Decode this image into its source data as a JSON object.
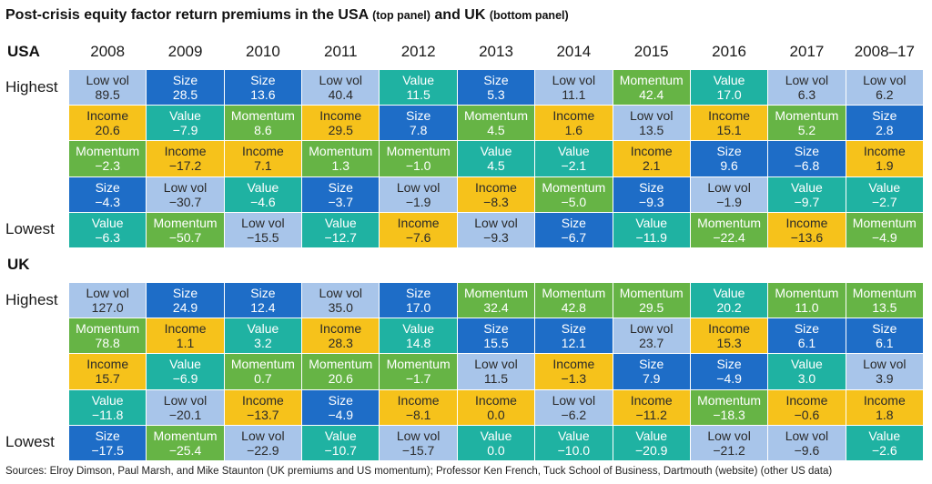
{
  "chart_data": {
    "type": "table",
    "title": {
      "main": "Post-crisis equity factor return premiums in the USA",
      "top_note": "(top panel)",
      "join": "and UK",
      "bottom_note": "(bottom panel)"
    },
    "periods": [
      "2008",
      "2009",
      "2010",
      "2011",
      "2012",
      "2013",
      "2014",
      "2015",
      "2016",
      "2017",
      "2008–17"
    ],
    "rank_labels": {
      "top": "Highest",
      "bottom": "Lowest"
    },
    "factor_colors": {
      "Low vol": "#a8c5ea",
      "Size": "#1e6dc7",
      "Income": "#f6c21b",
      "Momentum": "#66b445",
      "Value": "#1fb2a2"
    },
    "factor_text_colors": {
      "Low vol": "#2a2a2a",
      "Size": "#ffffff",
      "Income": "#2a2a2a",
      "Momentum": "#ffffff",
      "Value": "#ffffff"
    },
    "panels": [
      {
        "label": "USA",
        "ranked_by_period": [
          [
            {
              "factor": "Low vol",
              "value": 89.5
            },
            {
              "factor": "Income",
              "value": 20.6
            },
            {
              "factor": "Momentum",
              "value": -2.3
            },
            {
              "factor": "Size",
              "value": -4.3
            },
            {
              "factor": "Value",
              "value": -6.3
            }
          ],
          [
            {
              "factor": "Size",
              "value": 28.5
            },
            {
              "factor": "Value",
              "value": -7.9
            },
            {
              "factor": "Income",
              "value": -17.2
            },
            {
              "factor": "Low vol",
              "value": -30.7
            },
            {
              "factor": "Momentum",
              "value": -50.7
            }
          ],
          [
            {
              "factor": "Size",
              "value": 13.6
            },
            {
              "factor": "Momentum",
              "value": 8.6
            },
            {
              "factor": "Income",
              "value": 7.1
            },
            {
              "factor": "Value",
              "value": -4.6
            },
            {
              "factor": "Low vol",
              "value": -15.5
            }
          ],
          [
            {
              "factor": "Low vol",
              "value": 40.4
            },
            {
              "factor": "Income",
              "value": 29.5
            },
            {
              "factor": "Momentum",
              "value": 1.3
            },
            {
              "factor": "Size",
              "value": -3.7
            },
            {
              "factor": "Value",
              "value": -12.7
            }
          ],
          [
            {
              "factor": "Value",
              "value": 11.5
            },
            {
              "factor": "Size",
              "value": 7.8
            },
            {
              "factor": "Momentum",
              "value": -1.0
            },
            {
              "factor": "Low vol",
              "value": -1.9
            },
            {
              "factor": "Income",
              "value": -7.6
            }
          ],
          [
            {
              "factor": "Size",
              "value": 5.3
            },
            {
              "factor": "Momentum",
              "value": 4.5
            },
            {
              "factor": "Value",
              "value": 4.5
            },
            {
              "factor": "Income",
              "value": -8.3
            },
            {
              "factor": "Low vol",
              "value": -9.3
            }
          ],
          [
            {
              "factor": "Low vol",
              "value": 11.1
            },
            {
              "factor": "Income",
              "value": 1.6
            },
            {
              "factor": "Value",
              "value": -2.1
            },
            {
              "factor": "Momentum",
              "value": -5.0
            },
            {
              "factor": "Size",
              "value": -6.7
            }
          ],
          [
            {
              "factor": "Momentum",
              "value": 42.4
            },
            {
              "factor": "Low vol",
              "value": 13.5
            },
            {
              "factor": "Income",
              "value": 2.1
            },
            {
              "factor": "Size",
              "value": -9.3
            },
            {
              "factor": "Value",
              "value": -11.9
            }
          ],
          [
            {
              "factor": "Value",
              "value": 17.0
            },
            {
              "factor": "Income",
              "value": 15.1
            },
            {
              "factor": "Size",
              "value": 9.6
            },
            {
              "factor": "Low vol",
              "value": -1.9
            },
            {
              "factor": "Momentum",
              "value": -22.4
            }
          ],
          [
            {
              "factor": "Low vol",
              "value": 6.3
            },
            {
              "factor": "Momentum",
              "value": 5.2
            },
            {
              "factor": "Size",
              "value": -6.8
            },
            {
              "factor": "Value",
              "value": -9.7
            },
            {
              "factor": "Income",
              "value": -13.6
            }
          ],
          [
            {
              "factor": "Low vol",
              "value": 6.2
            },
            {
              "factor": "Size",
              "value": 2.8
            },
            {
              "factor": "Income",
              "value": 1.9
            },
            {
              "factor": "Value",
              "value": -2.7
            },
            {
              "factor": "Momentum",
              "value": -4.9
            }
          ]
        ]
      },
      {
        "label": "UK",
        "ranked_by_period": [
          [
            {
              "factor": "Low vol",
              "value": 127.0
            },
            {
              "factor": "Momentum",
              "value": 78.8
            },
            {
              "factor": "Income",
              "value": 15.7
            },
            {
              "factor": "Value",
              "value": -11.8
            },
            {
              "factor": "Size",
              "value": -17.5
            }
          ],
          [
            {
              "factor": "Size",
              "value": 24.9
            },
            {
              "factor": "Income",
              "value": 1.1
            },
            {
              "factor": "Value",
              "value": -6.9
            },
            {
              "factor": "Low vol",
              "value": -20.1
            },
            {
              "factor": "Momentum",
              "value": -25.4
            }
          ],
          [
            {
              "factor": "Size",
              "value": 12.4
            },
            {
              "factor": "Value",
              "value": 3.2
            },
            {
              "factor": "Momentum",
              "value": 0.7
            },
            {
              "factor": "Income",
              "value": -13.7
            },
            {
              "factor": "Low vol",
              "value": -22.9
            }
          ],
          [
            {
              "factor": "Low vol",
              "value": 35.0
            },
            {
              "factor": "Income",
              "value": 28.3
            },
            {
              "factor": "Momentum",
              "value": 20.6
            },
            {
              "factor": "Size",
              "value": -4.9
            },
            {
              "factor": "Value",
              "value": -10.7
            }
          ],
          [
            {
              "factor": "Size",
              "value": 17.0
            },
            {
              "factor": "Value",
              "value": 14.8
            },
            {
              "factor": "Momentum",
              "value": -1.7
            },
            {
              "factor": "Income",
              "value": -8.1
            },
            {
              "factor": "Low vol",
              "value": -15.7
            }
          ],
          [
            {
              "factor": "Momentum",
              "value": 32.4
            },
            {
              "factor": "Size",
              "value": 15.5
            },
            {
              "factor": "Low vol",
              "value": 11.5
            },
            {
              "factor": "Income",
              "value": 0.0
            },
            {
              "factor": "Value",
              "value": 0.0
            }
          ],
          [
            {
              "factor": "Momentum",
              "value": 42.8
            },
            {
              "factor": "Size",
              "value": 12.1
            },
            {
              "factor": "Income",
              "value": -1.3
            },
            {
              "factor": "Low vol",
              "value": -6.2
            },
            {
              "factor": "Value",
              "value": -10.0
            }
          ],
          [
            {
              "factor": "Momentum",
              "value": 29.5
            },
            {
              "factor": "Low vol",
              "value": 23.7
            },
            {
              "factor": "Size",
              "value": 7.9
            },
            {
              "factor": "Income",
              "value": -11.2
            },
            {
              "factor": "Value",
              "value": -20.9
            }
          ],
          [
            {
              "factor": "Value",
              "value": 20.2
            },
            {
              "factor": "Income",
              "value": 15.3
            },
            {
              "factor": "Size",
              "value": -4.9
            },
            {
              "factor": "Momentum",
              "value": -18.3
            },
            {
              "factor": "Low vol",
              "value": -21.2
            }
          ],
          [
            {
              "factor": "Momentum",
              "value": 11.0
            },
            {
              "factor": "Size",
              "value": 6.1
            },
            {
              "factor": "Value",
              "value": 3.0
            },
            {
              "factor": "Income",
              "value": -0.6
            },
            {
              "factor": "Low vol",
              "value": -9.6
            }
          ],
          [
            {
              "factor": "Momentum",
              "value": 13.5
            },
            {
              "factor": "Size",
              "value": 6.1
            },
            {
              "factor": "Low vol",
              "value": 3.9
            },
            {
              "factor": "Income",
              "value": 1.8
            },
            {
              "factor": "Value",
              "value": -2.6
            }
          ]
        ]
      }
    ],
    "source": "Sources: Elroy Dimson, Paul Marsh, and Mike Staunton (UK premiums and US momentum); Professor Ken French, Tuck School of Business, Dartmouth (website) (other US data)"
  }
}
